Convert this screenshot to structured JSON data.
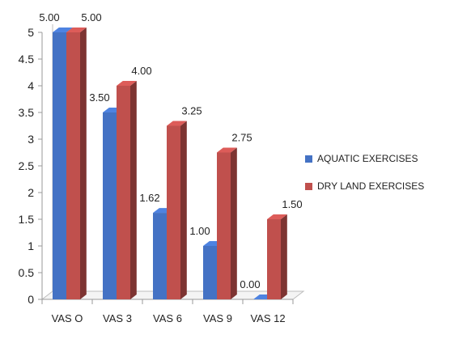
{
  "chart_data": {
    "type": "bar",
    "title": "",
    "xlabel": "",
    "ylabel": "",
    "ylim": [
      0,
      5
    ],
    "yticks": [
      "0",
      "0.5",
      "1",
      "1.5",
      "2",
      "2.5",
      "3",
      "3.5",
      "4",
      "4.5",
      "5"
    ],
    "categories": [
      "VAS O",
      "VAS 3",
      "VAS 6",
      "VAS 9",
      "VAS 12"
    ],
    "series": [
      {
        "name": "AQUATIC EXERCISES",
        "color": "#4472c4",
        "values": [
          5.0,
          3.5,
          1.62,
          1.0,
          0.0
        ],
        "labels": [
          "5.00",
          "3.50",
          "1.62",
          "1.00",
          "0.00"
        ]
      },
      {
        "name": "DRY LAND EXERCISES",
        "color": "#c0504d",
        "values": [
          5.0,
          4.0,
          3.25,
          2.75,
          1.5
        ],
        "labels": [
          "5.00",
          "4.00",
          "3.25",
          "2.75",
          "1.50"
        ]
      }
    ],
    "legend_position": "right",
    "grid": false
  }
}
